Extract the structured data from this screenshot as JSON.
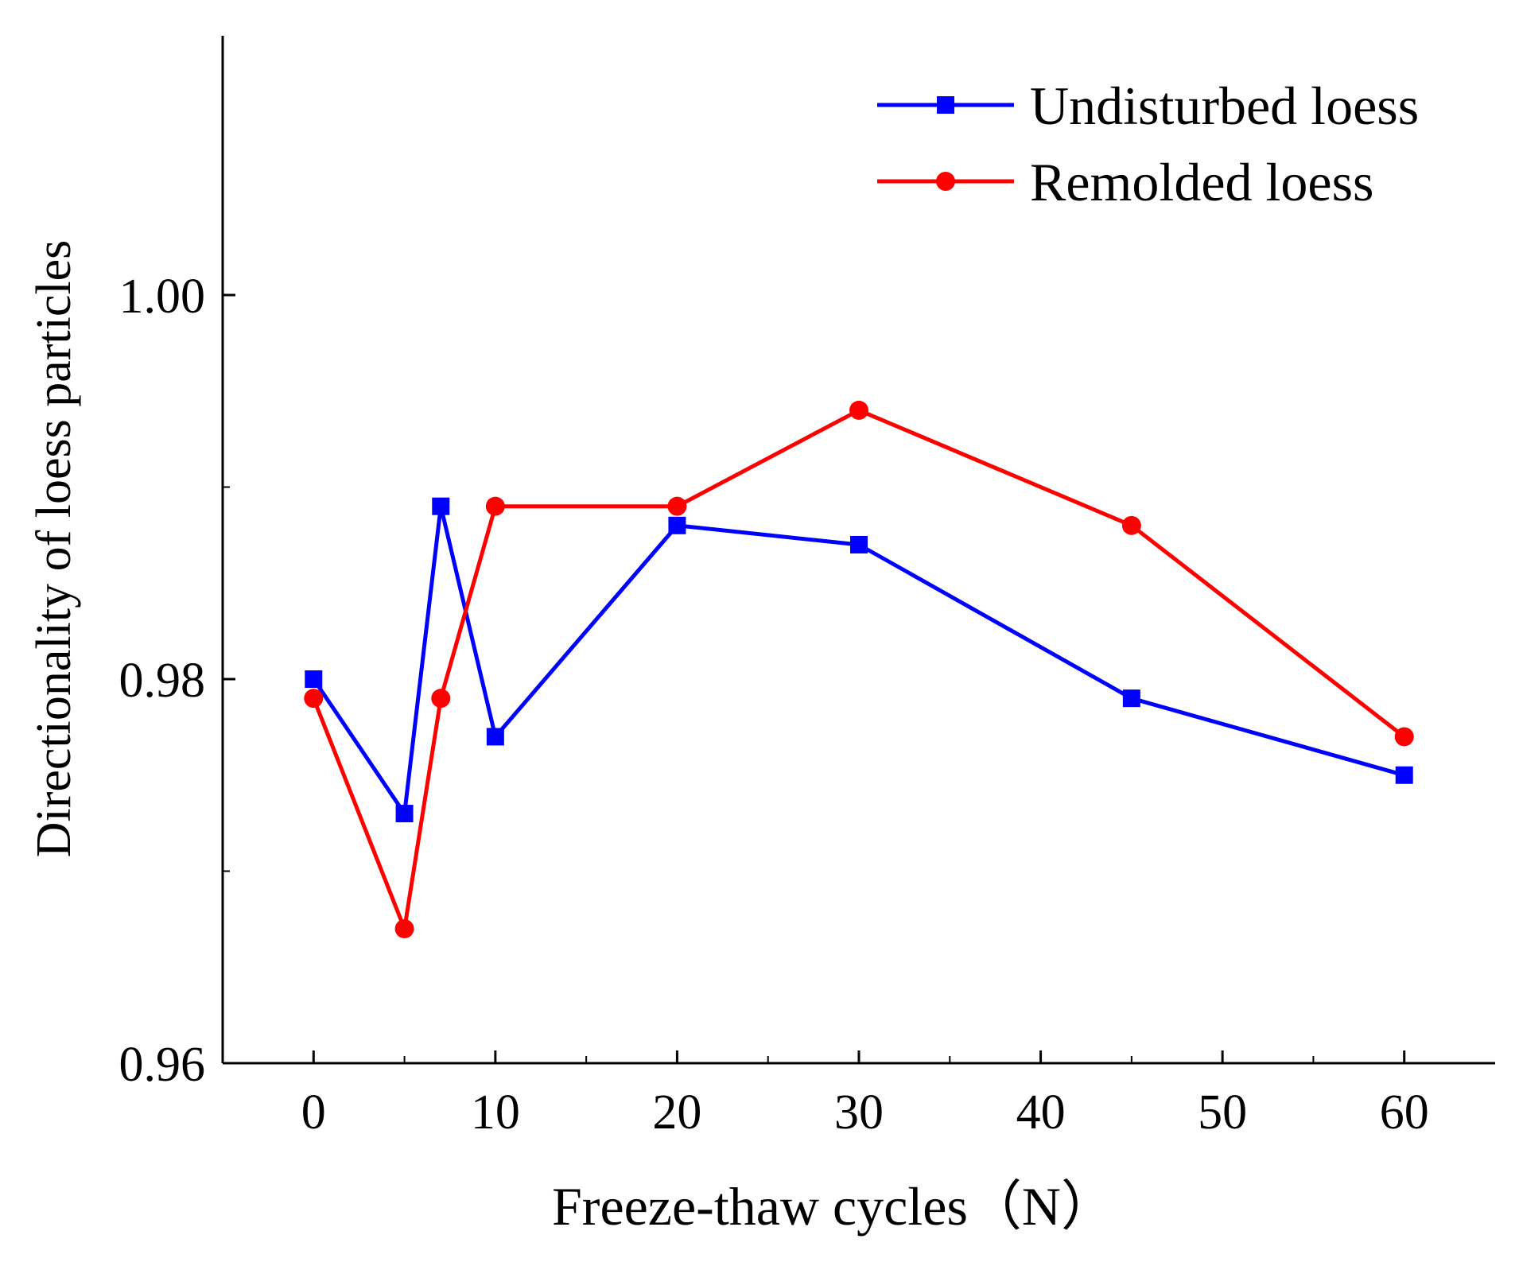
{
  "chart_data": {
    "type": "line",
    "title": "",
    "xlabel": "Freeze-thaw cycles（N）",
    "ylabel": "Directionality of loess particles",
    "xlim": [
      -5,
      65
    ],
    "ylim": [
      0.96,
      1.0135
    ],
    "x_ticks": [
      0,
      10,
      20,
      30,
      40,
      50,
      60
    ],
    "x_tick_labels": [
      "0",
      "10",
      "20",
      "30",
      "40",
      "50",
      "60"
    ],
    "y_ticks": [
      0.96,
      0.98,
      1.0
    ],
    "y_tick_labels": [
      "0.96",
      "0.98",
      "1.00"
    ],
    "grid": false,
    "legend_position": "top-right",
    "x": [
      0,
      5,
      7,
      10,
      20,
      30,
      45,
      60
    ],
    "series": [
      {
        "name": "Undisturbed loess",
        "color": "#0000ff",
        "marker": "square",
        "values": [
          0.98,
          0.973,
          0.989,
          0.977,
          0.988,
          0.987,
          0.979,
          0.975
        ]
      },
      {
        "name": "Remolded loess",
        "color": "#ff0000",
        "marker": "circle",
        "values": [
          0.979,
          0.967,
          0.979,
          0.989,
          0.989,
          0.994,
          0.988,
          0.977
        ]
      }
    ]
  }
}
